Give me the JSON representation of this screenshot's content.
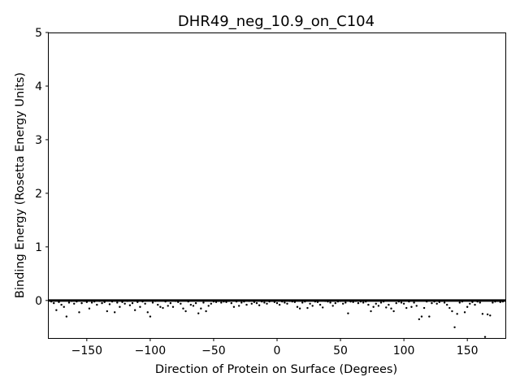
{
  "chart_data": {
    "type": "scatter",
    "title": "DHR49_neg_10.9_on_C104",
    "xlabel": "Direction of Protein on Surface (Degrees)",
    "ylabel": "Binding Energy (Rosetta Energy Units)",
    "xlim": [
      -180,
      180
    ],
    "ylim": [
      -0.7,
      5
    ],
    "xticks": [
      -150,
      -100,
      -50,
      0,
      50,
      100,
      150
    ],
    "xtick_labels": [
      "−150",
      "−100",
      "−50",
      "0",
      "50",
      "100",
      "150"
    ],
    "yticks": [
      0,
      1,
      2,
      3,
      4,
      5
    ],
    "ytick_labels": [
      "0",
      "1",
      "2",
      "3",
      "4",
      "5"
    ],
    "grid": false,
    "legend": "none",
    "marker_color": "#000000",
    "series": [
      {
        "x": [
          -178,
          -176,
          -174,
          -172,
          -170,
          -168,
          -166,
          -164,
          -162,
          -160,
          -158,
          -156,
          -154,
          -152,
          -150,
          -148,
          -146,
          -144,
          -142,
          -140,
          -138,
          -136,
          -134,
          -132,
          -130,
          -128,
          -126,
          -124,
          -122,
          -120,
          -118,
          -116,
          -114,
          -112,
          -110,
          -108,
          -106,
          -104,
          -102,
          -100,
          -98,
          -96,
          -94,
          -92,
          -90,
          -88,
          -86,
          -84,
          -82,
          -80,
          -78,
          -76,
          -74,
          -72,
          -70,
          -68,
          -66,
          -64,
          -62,
          -60,
          -58,
          -56,
          -54,
          -52,
          -50,
          -48,
          -46,
          -44,
          -42,
          -40,
          -38,
          -36,
          -34,
          -32,
          -30,
          -28,
          -26,
          -24,
          -22,
          -20,
          -18,
          -16,
          -14,
          -12,
          -10,
          -8,
          -6,
          -4,
          -2,
          0,
          2,
          4,
          6,
          8,
          10,
          12,
          14,
          16,
          18,
          20,
          22,
          24,
          26,
          28,
          30,
          32,
          34,
          36,
          38,
          40,
          42,
          44,
          46,
          48,
          50,
          52,
          54,
          56,
          58,
          60,
          62,
          64,
          66,
          68,
          70,
          72,
          74,
          76,
          78,
          80,
          82,
          84,
          86,
          88,
          90,
          92,
          94,
          96,
          98,
          100,
          102,
          104,
          106,
          108,
          110,
          112,
          114,
          116,
          118,
          120,
          122,
          124,
          126,
          128,
          130,
          132,
          134,
          136,
          138,
          140,
          142,
          144,
          146,
          148,
          150,
          152,
          154,
          156,
          158,
          160,
          162,
          164,
          166,
          168,
          170,
          172,
          174,
          176,
          178
        ],
        "y": [
          -0.02,
          -0.05,
          -0.18,
          -0.03,
          -0.08,
          -0.12,
          -0.3,
          -0.04,
          -0.01,
          -0.06,
          -0.02,
          -0.22,
          -0.05,
          -0.01,
          -0.03,
          -0.15,
          -0.04,
          -0.02,
          -0.08,
          -0.01,
          -0.05,
          -0.03,
          -0.2,
          -0.07,
          -0.02,
          -0.22,
          -0.04,
          -0.12,
          -0.03,
          -0.06,
          -0.01,
          -0.09,
          -0.05,
          -0.18,
          -0.03,
          -0.12,
          -0.02,
          -0.06,
          -0.22,
          -0.3,
          -0.04,
          -0.01,
          -0.08,
          -0.12,
          -0.14,
          -0.02,
          -0.1,
          -0.05,
          -0.12,
          -0.01,
          -0.03,
          -0.06,
          -0.15,
          -0.2,
          -0.02,
          -0.08,
          -0.1,
          -0.05,
          -0.24,
          -0.15,
          -0.04,
          -0.2,
          -0.1,
          -0.06,
          -0.02,
          -0.03,
          -0.01,
          -0.04,
          -0.02,
          -0.03,
          -0.01,
          -0.05,
          -0.12,
          -0.02,
          -0.1,
          -0.04,
          -0.02,
          -0.08,
          -0.01,
          -0.06,
          -0.03,
          -0.05,
          -0.09,
          -0.02,
          -0.04,
          -0.06,
          -0.02,
          -0.01,
          -0.03,
          -0.05,
          -0.08,
          -0.02,
          -0.04,
          -0.06,
          -0.01,
          -0.02,
          -0.03,
          -0.12,
          -0.15,
          -0.04,
          -0.02,
          -0.14,
          -0.06,
          -0.1,
          -0.02,
          -0.03,
          -0.08,
          -0.13,
          -0.01,
          -0.02,
          -0.04,
          -0.1,
          -0.05,
          -0.02,
          -0.01,
          -0.06,
          -0.04,
          -0.24,
          -0.02,
          -0.03,
          -0.01,
          -0.05,
          -0.02,
          -0.04,
          -0.02,
          -0.08,
          -0.2,
          -0.12,
          -0.06,
          -0.1,
          -0.04,
          -0.02,
          -0.13,
          -0.08,
          -0.15,
          -0.2,
          -0.05,
          -0.02,
          -0.04,
          -0.06,
          -0.14,
          -0.02,
          -0.12,
          -0.04,
          -0.1,
          -0.35,
          -0.3,
          -0.14,
          -0.02,
          -0.3,
          -0.05,
          -0.02,
          -0.06,
          -0.03,
          -0.01,
          -0.04,
          -0.08,
          -0.14,
          -0.2,
          -0.5,
          -0.25,
          -0.04,
          -0.02,
          -0.22,
          -0.12,
          -0.06,
          -0.03,
          -0.08,
          -0.02,
          -0.04,
          -0.25,
          -0.68,
          -0.26,
          -0.28,
          -0.04,
          -0.02,
          -0.01,
          -0.03,
          -0.02
        ]
      }
    ]
  }
}
